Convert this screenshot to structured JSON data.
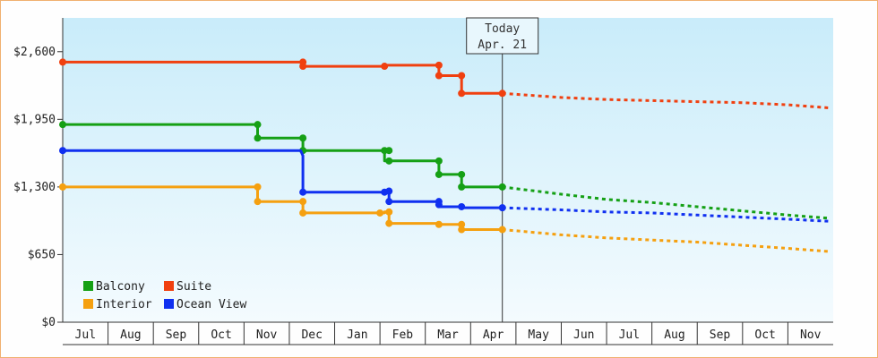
{
  "chart_data": {
    "type": "line",
    "today_marker": {
      "line1": "Today",
      "line2": "Apr. 21",
      "x": 9.7
    },
    "x_tick_labels": [
      "Jul",
      "Aug",
      "Sep",
      "Oct",
      "Nov",
      "Dec",
      "Jan",
      "Feb",
      "Mar",
      "Apr",
      "May",
      "Jun",
      "Jul",
      "Aug",
      "Sep",
      "Oct",
      "Nov"
    ],
    "y_ticks": [
      0,
      650,
      1300,
      1950,
      2600
    ],
    "y_tick_labels": [
      "$0",
      "$650",
      "$1,300",
      "$1,950",
      "$2,600"
    ],
    "xlim": [
      0,
      17
    ],
    "ylim": [
      0,
      2925
    ],
    "legend": {
      "placement": "bottom-left",
      "columns": 2
    },
    "series": [
      {
        "name": "Balcony",
        "color": "#15a015",
        "actual": [
          [
            0,
            1900
          ],
          [
            4.3,
            1900
          ],
          [
            4.3,
            1770
          ],
          [
            5.3,
            1770
          ],
          [
            5.3,
            1650
          ],
          [
            7.1,
            1650
          ],
          [
            7.1,
            1550
          ],
          [
            8.3,
            1550
          ],
          [
            8.3,
            1420
          ],
          [
            8.8,
            1420
          ],
          [
            8.8,
            1300
          ],
          [
            9.7,
            1300
          ]
        ],
        "points": [
          [
            0,
            1900
          ],
          [
            4.3,
            1900
          ],
          [
            4.3,
            1770
          ],
          [
            5.3,
            1770
          ],
          [
            5.3,
            1650
          ],
          [
            7.1,
            1650
          ],
          [
            7.2,
            1650
          ],
          [
            7.2,
            1550
          ],
          [
            8.3,
            1550
          ],
          [
            8.3,
            1420
          ],
          [
            8.8,
            1420
          ],
          [
            8.8,
            1300
          ],
          [
            9.7,
            1300
          ]
        ],
        "forecast": [
          [
            9.7,
            1300
          ],
          [
            11,
            1230
          ],
          [
            12,
            1180
          ],
          [
            13,
            1150
          ],
          [
            14,
            1110
          ],
          [
            15,
            1070
          ],
          [
            16,
            1030
          ],
          [
            16.9,
            1000
          ]
        ]
      },
      {
        "name": "Suite",
        "color": "#f04010",
        "actual": [
          [
            0,
            2500
          ],
          [
            5.3,
            2500
          ],
          [
            5.3,
            2460
          ],
          [
            7.1,
            2460
          ],
          [
            7.1,
            2470
          ],
          [
            8.3,
            2470
          ],
          [
            8.3,
            2370
          ],
          [
            8.8,
            2370
          ],
          [
            8.8,
            2200
          ],
          [
            9.7,
            2200
          ]
        ],
        "points": [
          [
            0,
            2500
          ],
          [
            5.3,
            2500
          ],
          [
            5.3,
            2460
          ],
          [
            7.1,
            2460
          ],
          [
            8.3,
            2470
          ],
          [
            8.3,
            2370
          ],
          [
            8.8,
            2370
          ],
          [
            8.8,
            2200
          ],
          [
            9.7,
            2200
          ]
        ],
        "forecast": [
          [
            9.7,
            2200
          ],
          [
            11,
            2160
          ],
          [
            12,
            2140
          ],
          [
            13,
            2130
          ],
          [
            14,
            2120
          ],
          [
            15,
            2110
          ],
          [
            16,
            2090
          ],
          [
            16.9,
            2060
          ]
        ]
      },
      {
        "name": "Interior",
        "color": "#f5a010",
        "actual": [
          [
            0,
            1300
          ],
          [
            4.3,
            1300
          ],
          [
            4.3,
            1160
          ],
          [
            5.3,
            1160
          ],
          [
            5.3,
            1050
          ],
          [
            7.1,
            1050
          ],
          [
            7.1,
            1060
          ],
          [
            7.2,
            1060
          ],
          [
            7.2,
            950
          ],
          [
            8.3,
            950
          ],
          [
            8.3,
            940
          ],
          [
            8.8,
            940
          ],
          [
            8.8,
            890
          ],
          [
            9.7,
            890
          ]
        ],
        "points": [
          [
            0,
            1300
          ],
          [
            4.3,
            1300
          ],
          [
            4.3,
            1160
          ],
          [
            5.3,
            1160
          ],
          [
            5.3,
            1050
          ],
          [
            7.0,
            1050
          ],
          [
            7.2,
            1060
          ],
          [
            7.2,
            950
          ],
          [
            8.3,
            940
          ],
          [
            8.8,
            940
          ],
          [
            8.8,
            890
          ],
          [
            9.7,
            890
          ]
        ],
        "forecast": [
          [
            9.7,
            890
          ],
          [
            11,
            840
          ],
          [
            12,
            810
          ],
          [
            13,
            790
          ],
          [
            14,
            770
          ],
          [
            15,
            740
          ],
          [
            16,
            710
          ],
          [
            16.9,
            680
          ]
        ]
      },
      {
        "name": "Ocean View",
        "color": "#1030f0",
        "actual": [
          [
            0,
            1650
          ],
          [
            5.25,
            1650
          ],
          [
            5.3,
            1600
          ],
          [
            5.3,
            1250
          ],
          [
            7.1,
            1250
          ],
          [
            7.1,
            1260
          ],
          [
            7.2,
            1260
          ],
          [
            7.2,
            1160
          ],
          [
            8.3,
            1160
          ],
          [
            8.3,
            1110
          ],
          [
            8.8,
            1110
          ],
          [
            8.8,
            1100
          ],
          [
            9.7,
            1100
          ]
        ],
        "points": [
          [
            0,
            1650
          ],
          [
            5.3,
            1250
          ],
          [
            7.1,
            1250
          ],
          [
            7.2,
            1260
          ],
          [
            7.2,
            1160
          ],
          [
            8.3,
            1160
          ],
          [
            8.3,
            1130
          ],
          [
            8.8,
            1110
          ],
          [
            9.7,
            1100
          ]
        ],
        "forecast": [
          [
            9.7,
            1100
          ],
          [
            11,
            1080
          ],
          [
            12,
            1060
          ],
          [
            13,
            1050
          ],
          [
            14,
            1030
          ],
          [
            15,
            1010
          ],
          [
            16,
            990
          ],
          [
            16.9,
            970
          ]
        ]
      }
    ]
  }
}
